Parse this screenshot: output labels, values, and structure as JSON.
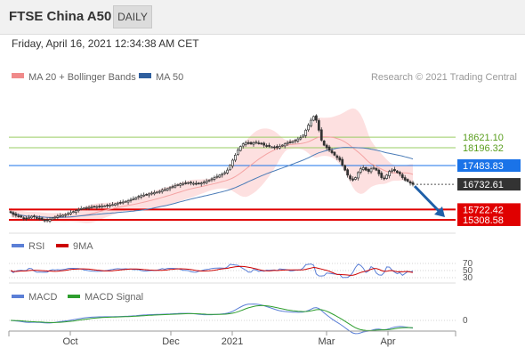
{
  "header": {
    "title": "FTSE China A50",
    "period_button": "DAILY",
    "datetime": "Friday, April 16, 2021 12:34:38 AM CET"
  },
  "legend": {
    "items": [
      {
        "name": "MA 20 + Bollinger Bands",
        "color": "#f08a8a"
      },
      {
        "name": "MA 50",
        "color": "#2f5f9e"
      }
    ],
    "copyright": "Research © 2021 Trading Central"
  },
  "colors": {
    "up_candle": "#ffffff",
    "down_candle": "#333333",
    "bollinger_fill": "#fde0e0",
    "ma20": "#f4a3a3",
    "ma50": "#4a7bb7",
    "resistance": "#9acd63",
    "pivot": "#1a73e8",
    "support": "#e00000",
    "arrow": "#1f5fa8",
    "price_box": "#333333"
  },
  "chart_data": [
    {
      "type": "candlestick",
      "x_axis_labels": [
        "Oct",
        "Dec",
        "2021",
        "Mar",
        "Apr"
      ],
      "levels": [
        {
          "value": 18621.1,
          "label": "18621.10",
          "kind": "resistance"
        },
        {
          "value": 18196.32,
          "label": "18196.32",
          "kind": "resistance"
        },
        {
          "value": 17483.83,
          "label": "17483.83",
          "kind": "pivot"
        },
        {
          "value": 16732.61,
          "label": "16732.61",
          "kind": "last_price"
        },
        {
          "value": 15722.42,
          "label": "15722.42",
          "kind": "support"
        },
        {
          "value": 15308.58,
          "label": "15308.58",
          "kind": "support"
        }
      ],
      "close_series": [
        15600,
        15520,
        15480,
        15450,
        15420,
        15380,
        15350,
        15400,
        15450,
        15430,
        15380,
        15350,
        15320,
        15300,
        15280,
        15320,
        15380,
        15420,
        15460,
        15480,
        15500,
        15520,
        15560,
        15600,
        15640,
        15680,
        15720,
        15760,
        15780,
        15800,
        15810,
        15820,
        15830,
        15840,
        15850,
        15860,
        15870,
        15880,
        15900,
        15920,
        15950,
        15980,
        16000,
        16020,
        16050,
        16080,
        16120,
        16150,
        16200,
        16250,
        16280,
        16300,
        16320,
        16350,
        16380,
        16400,
        16420,
        16450,
        16500,
        16520,
        16560,
        16600,
        16640,
        16680,
        16720,
        16750,
        16760,
        16780,
        16800,
        16790,
        16770,
        16750,
        16760,
        16780,
        16820,
        16860,
        16900,
        16950,
        17000,
        17050,
        17100,
        17150,
        17200,
        17300,
        17500,
        17700,
        17900,
        18100,
        18250,
        18350,
        18400,
        18380,
        18350,
        18400,
        18420,
        18380,
        18350,
        18300,
        18280,
        18250,
        18230,
        18220,
        18200,
        18250,
        18300,
        18350,
        18400,
        18420,
        18450,
        18500,
        18550,
        18600,
        18700,
        18900,
        19100,
        19300,
        19450,
        19300,
        18900,
        18500,
        18300,
        18200,
        18100,
        18000,
        17900,
        17800,
        17700,
        17500,
        17300,
        17100,
        16950,
        16900,
        17000,
        17200,
        17350,
        17400,
        17300,
        17250,
        17350,
        17400,
        17300,
        17150,
        17000,
        16950,
        17100,
        17250,
        17300,
        17280,
        17200,
        17150,
        17000,
        16900,
        16850,
        16780,
        16730
      ],
      "rsi": {
        "levels": [
          70,
          50,
          30
        ]
      },
      "macd": {
        "levels": [
          0
        ]
      }
    }
  ],
  "rsi_legend": [
    {
      "name": "RSI",
      "color": "#5b7fd6"
    },
    {
      "name": "9MA",
      "color": "#cc0000"
    }
  ],
  "macd_legend": [
    {
      "name": "MACD",
      "color": "#5b7fd6"
    },
    {
      "name": "MACD Signal",
      "color": "#2e9e2e"
    }
  ],
  "rsi_scale": [
    "70",
    "50",
    "30"
  ],
  "macd_scale": [
    "0"
  ]
}
